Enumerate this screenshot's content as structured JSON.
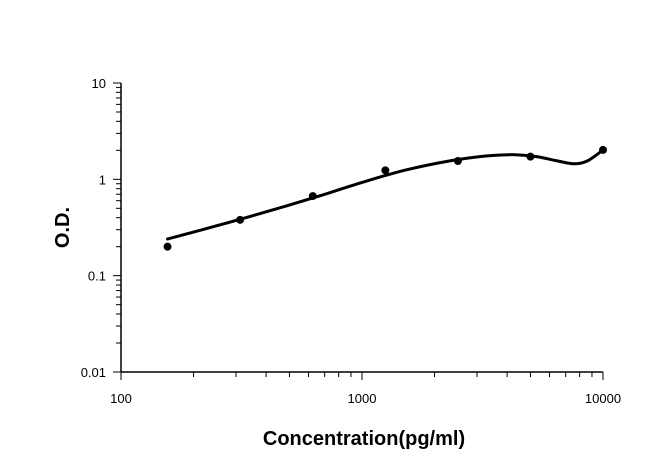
{
  "chart_data": {
    "type": "scatter",
    "title": "",
    "xlabel": "Concentration(pg/ml)",
    "ylabel": "O.D.",
    "x_scale": "log",
    "y_scale": "log",
    "xlim": [
      100,
      10000
    ],
    "ylim": [
      0.01,
      10
    ],
    "x_ticks": [
      100,
      1000,
      10000
    ],
    "x_tick_labels": [
      "100",
      "1000",
      "10000"
    ],
    "y_ticks": [
      0.01,
      0.1,
      1,
      10
    ],
    "y_tick_labels": [
      "0.01",
      "0.1",
      "1",
      "10"
    ],
    "grid": false,
    "legend": false,
    "points": [
      {
        "x": 156,
        "y": 0.2
      },
      {
        "x": 312,
        "y": 0.38
      },
      {
        "x": 625,
        "y": 0.67
      },
      {
        "x": 1250,
        "y": 1.24
      },
      {
        "x": 2500,
        "y": 1.55
      },
      {
        "x": 5000,
        "y": 1.72
      },
      {
        "x": 10000,
        "y": 2.02
      }
    ],
    "fit_curve": [
      {
        "x": 156,
        "y": 0.24
      },
      {
        "x": 250,
        "y": 0.33
      },
      {
        "x": 400,
        "y": 0.46
      },
      {
        "x": 650,
        "y": 0.66
      },
      {
        "x": 1000,
        "y": 0.93
      },
      {
        "x": 1500,
        "y": 1.24
      },
      {
        "x": 2300,
        "y": 1.55
      },
      {
        "x": 3300,
        "y": 1.75
      },
      {
        "x": 4300,
        "y": 1.8
      },
      {
        "x": 5300,
        "y": 1.72
      },
      {
        "x": 6500,
        "y": 1.55
      },
      {
        "x": 7600,
        "y": 1.45
      },
      {
        "x": 8600,
        "y": 1.55
      },
      {
        "x": 10000,
        "y": 2.02
      }
    ],
    "colors": {
      "marker": "#000000",
      "line": "#000000",
      "axis": "#000000"
    }
  }
}
